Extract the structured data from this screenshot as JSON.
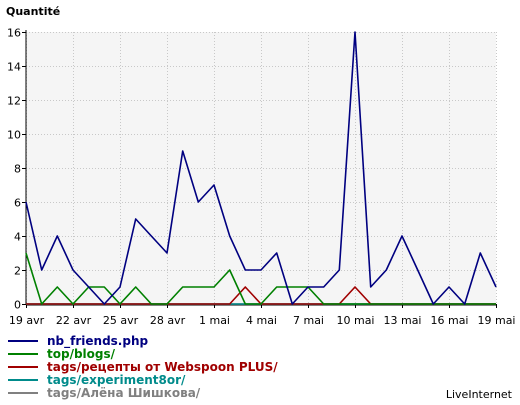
{
  "chart_data": {
    "type": "line",
    "title": "Quantité",
    "ylim": [
      0,
      16
    ],
    "yticks": [
      0,
      2,
      4,
      6,
      8,
      10,
      12,
      14,
      16
    ],
    "grid": true,
    "legend_placement": "bottom-left",
    "x": [
      "19 avr",
      "20 avr",
      "21 avr",
      "22 avr",
      "23 avr",
      "24 avr",
      "25 avr",
      "26 avr",
      "27 avr",
      "28 avr",
      "29 avr",
      "30 avr",
      "1 mai",
      "2 mai",
      "3 mai",
      "4 mai",
      "5 mai",
      "6 mai",
      "7 mai",
      "8 mai",
      "9 mai",
      "10 mai",
      "11 mai",
      "12 mai",
      "13 mai",
      "14 mai",
      "15 mai",
      "16 mai",
      "17 mai",
      "18 mai",
      "19 mai"
    ],
    "xtick_labels": [
      "19 avr",
      "22 avr",
      "25 avr",
      "28 avr",
      "1 mai",
      "4 mai",
      "7 mai",
      "10 mai",
      "13 mai",
      "16 mai",
      "19 mai"
    ],
    "series": [
      {
        "name": "nb_friends.php",
        "color": "#000080",
        "values": [
          6,
          2,
          4,
          2,
          1,
          0,
          1,
          5,
          4,
          3,
          9,
          6,
          7,
          4,
          2,
          2,
          3,
          0,
          1,
          1,
          2,
          16,
          1,
          2,
          4,
          2,
          0,
          1,
          0,
          3,
          1
        ]
      },
      {
        "name": "top/blogs/",
        "color": "#008000",
        "values": [
          3,
          0,
          1,
          0,
          1,
          1,
          0,
          1,
          0,
          0,
          1,
          1,
          1,
          2,
          0,
          0,
          1,
          1,
          1,
          0,
          0,
          0,
          0,
          0,
          0,
          0,
          0,
          0,
          0,
          0,
          0
        ]
      },
      {
        "name": "tags/рецепты от Webspoon PLUS/",
        "color": "#a00000",
        "values": [
          0,
          0,
          0,
          0,
          0,
          0,
          0,
          0,
          0,
          0,
          0,
          0,
          0,
          0,
          1,
          0,
          0,
          0,
          0,
          0,
          0,
          1,
          0,
          0,
          0,
          0,
          0,
          0,
          0,
          0,
          0
        ]
      },
      {
        "name": "tags/experiment8or/",
        "color": "#008b8b",
        "values": [
          0,
          0,
          0,
          0,
          0,
          0,
          0,
          0,
          0,
          0,
          0,
          0,
          0,
          0,
          0,
          0,
          0,
          0,
          0,
          0,
          0,
          0,
          0,
          0,
          0,
          0,
          0,
          0,
          0,
          0,
          0
        ]
      },
      {
        "name": "tags/Алёна Шишкова/",
        "color": "#808080",
        "values": [
          0,
          0,
          0,
          0,
          0,
          0,
          0,
          0,
          0,
          0,
          0,
          0,
          0,
          0,
          0,
          0,
          0,
          0,
          0,
          0,
          0,
          0,
          0,
          0,
          0,
          0,
          0,
          0,
          0,
          0,
          0
        ]
      }
    ]
  },
  "branding": "LiveInternet"
}
